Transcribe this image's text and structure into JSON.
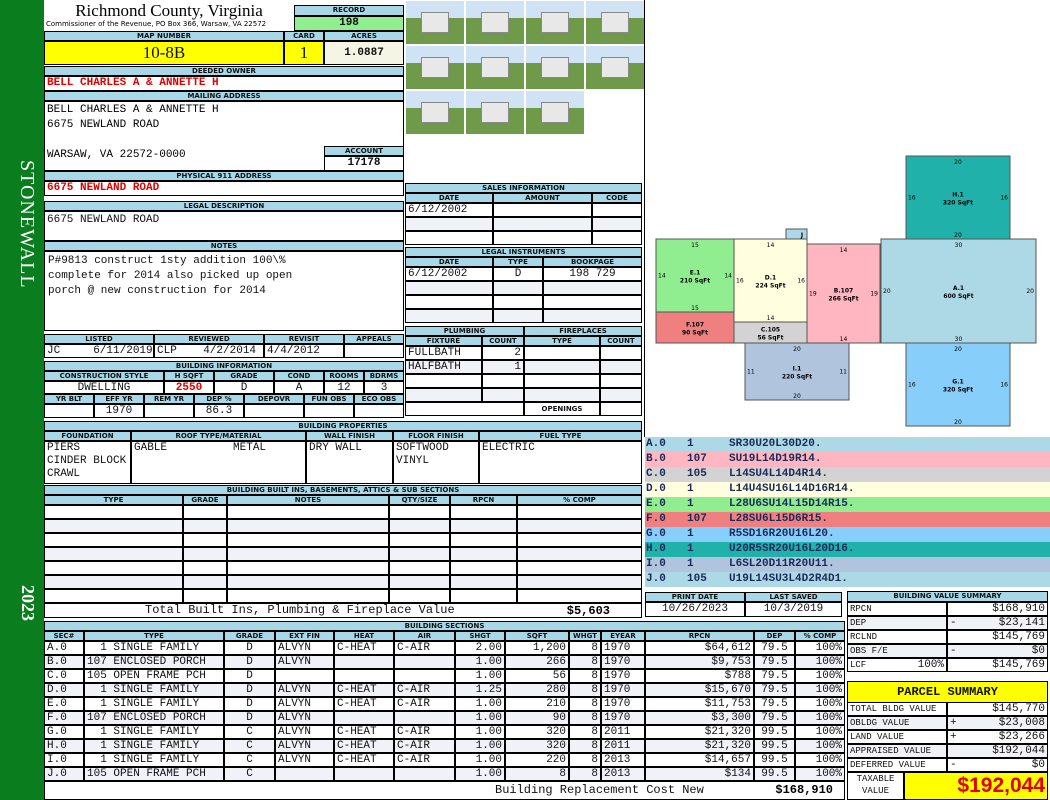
{
  "sidebar": {
    "district": "STONEWALL",
    "year": "2023",
    "color": "#0a7d1e"
  },
  "header": {
    "county": "Richmond County, Virginia",
    "subtitle": "Commissioner of the Revenue, PO Box 366, Warsaw, VA 22572",
    "record_label": "RECORD",
    "record": "198",
    "map_label": "MAP NUMBER",
    "map_number": "10-8B",
    "card_label": "CARD",
    "card": "1",
    "acres_label": "ACRES",
    "acres": "1.0887"
  },
  "owner": {
    "label": "DEEDED OWNER",
    "name": "BELL CHARLES A & ANNETTE H"
  },
  "mailing": {
    "label": "MAILING ADDRESS",
    "line1": "BELL CHARLES A & ANNETTE H",
    "line2": "6675 NEWLAND ROAD",
    "line3": "WARSAW, VA 22572-0000",
    "account_label": "ACCOUNT",
    "account": "17178"
  },
  "physical": {
    "label": "PHYSICAL 911 ADDRESS",
    "address": "6675 NEWLAND ROAD"
  },
  "legal": {
    "label": "LEGAL DESCRIPTION",
    "text": "6675 NEWLAND ROAD"
  },
  "notes": {
    "label": "NOTES",
    "text": "P#9813 construct 1sty addition 100\\% complete for 2014 also picked up open porch @ new construction for 2014"
  },
  "listing": {
    "headers": [
      "LISTED",
      "REVIEWED",
      "REVISIT",
      "APPEALS"
    ],
    "values": [
      "JC     6/11/2019",
      "CLP    4/2/2014",
      "4/4/2012",
      ""
    ]
  },
  "building_info": {
    "label": "BUILDING INFORMATION",
    "headers1": [
      "CONSTRUCTION STYLE",
      "H SQFT",
      "GRADE",
      "COND",
      "ROOMS",
      "BDRMS"
    ],
    "values1": [
      "DWELLING",
      "2550",
      "D",
      "A",
      "12",
      "3"
    ],
    "headers2": [
      "YR BLT",
      "EFF YR",
      "REM YR",
      "DEP %",
      "DEPOVR",
      "FUN OBS",
      "ECO OBS"
    ],
    "values2": [
      "",
      "1970",
      "",
      "86.3",
      "",
      "",
      ""
    ]
  },
  "photos_count": 11,
  "sales": {
    "label": "SALES INFORMATION",
    "headers": [
      "DATE",
      "AMOUNT",
      "CODE"
    ],
    "rows": [
      [
        "6/12/2002",
        "",
        ""
      ],
      [
        "",
        "",
        ""
      ],
      [
        "",
        "",
        ""
      ]
    ]
  },
  "instruments": {
    "label": "LEGAL INSTRUMENTS",
    "headers": [
      "DATE",
      "TYPE",
      "BOOKPAGE"
    ],
    "rows": [
      [
        "6/12/2002",
        "D",
        "198 729"
      ],
      [
        "",
        "",
        ""
      ],
      [
        "",
        "",
        ""
      ],
      [
        "",
        "",
        ""
      ]
    ]
  },
  "plumbing": {
    "label": "PLUMBING",
    "headers": [
      "FIXTURE",
      "COUNT"
    ],
    "rows": [
      [
        "FULLBATH",
        "2"
      ],
      [
        "HALFBATH",
        "1"
      ],
      [
        "",
        ""
      ],
      [
        "",
        ""
      ]
    ]
  },
  "fireplaces": {
    "label": "FIREPLACES",
    "headers": [
      "TYPE",
      "COUNT"
    ],
    "openings_label": "OPENINGS",
    "openings": ""
  },
  "properties": {
    "label": "BUILDING PROPERTIES",
    "headers": [
      "FOUNDATION",
      "ROOF TYPE/MATERIAL",
      "WALL FINISH",
      "FLOOR FINISH",
      "FUEL TYPE"
    ],
    "values": [
      "PIERS\nCINDER BLOCK\nCRAWL",
      "GABLE          METAL",
      "DRY WALL",
      "SOFTWOOD\nVINYL",
      "ELECTRIC"
    ]
  },
  "builtins": {
    "label": "BUILDING BUILT INS, BASEMENTS, ATTICS & SUB SECTIONS",
    "headers": [
      "TYPE",
      "GRADE",
      "NOTES",
      "QTY/SIZE",
      "RPCN",
      "% COMP"
    ],
    "rows": [],
    "total_label": "Total Built Ins, Plumbing & Fireplace Value",
    "total": "$5,603"
  },
  "sections": {
    "label": "BUILDING SECTIONS",
    "headers": [
      "SEC#",
      "TYPE",
      "GRADE",
      "EXT FIN",
      "HEAT",
      "AIR",
      "SHGT",
      "SQFT",
      "WHGT",
      "EYEAR",
      "RPCN",
      "DEP",
      "% COMP"
    ],
    "rows": [
      [
        "A.0",
        "  1 SINGLE FAMILY",
        "D",
        "ALVYN",
        "C-HEAT",
        "C-AIR",
        "2.00",
        "1,200",
        "8",
        "1970",
        "$64,612",
        "79.5",
        "100%"
      ],
      [
        "B.0",
        "107 ENCLOSED PORCH",
        "D",
        "ALVYN",
        "",
        "",
        "1.00",
        "266",
        "8",
        "1970",
        "$9,753",
        "79.5",
        "100%"
      ],
      [
        "C.0",
        "105 OPEN FRAME PCH",
        "D",
        "",
        "",
        "",
        "1.00",
        "56",
        "8",
        "1970",
        "$788",
        "79.5",
        "100%"
      ],
      [
        "D.0",
        "  1 SINGLE FAMILY",
        "D",
        "ALVYN",
        "C-HEAT",
        "C-AIR",
        "1.25",
        "280",
        "8",
        "1970",
        "$15,670",
        "79.5",
        "100%"
      ],
      [
        "E.0",
        "  1 SINGLE FAMILY",
        "D",
        "ALVYN",
        "C-HEAT",
        "C-AIR",
        "1.00",
        "210",
        "8",
        "1970",
        "$11,753",
        "79.5",
        "100%"
      ],
      [
        "F.0",
        "107 ENCLOSED PORCH",
        "D",
        "ALVYN",
        "",
        "",
        "1.00",
        "90",
        "8",
        "1970",
        "$3,300",
        "79.5",
        "100%"
      ],
      [
        "G.0",
        "  1 SINGLE FAMILY",
        "C",
        "ALVYN",
        "C-HEAT",
        "C-AIR",
        "1.00",
        "320",
        "8",
        "2011",
        "$21,320",
        "99.5",
        "100%"
      ],
      [
        "H.0",
        "  1 SINGLE FAMILY",
        "C",
        "ALVYN",
        "C-HEAT",
        "C-AIR",
        "1.00",
        "320",
        "8",
        "2011",
        "$21,320",
        "99.5",
        "100%"
      ],
      [
        "I.0",
        "  1 SINGLE FAMILY",
        "C",
        "ALVYN",
        "C-HEAT",
        "C-AIR",
        "1.00",
        "220",
        "8",
        "2013",
        "$14,657",
        "99.5",
        "100%"
      ],
      [
        "J.0",
        "105 OPEN FRAME PCH",
        "C",
        "",
        "",
        "",
        "1.00",
        "8",
        "8",
        "2013",
        "$134",
        "99.5",
        "100%"
      ]
    ],
    "total_label": "Building Replacement Cost New",
    "total": "$168,910"
  },
  "sketch": {
    "sections": [
      {
        "id": "A",
        "label": "A.1",
        "sqft": "600 SqFt",
        "color": "#add8e6",
        "dims": [
          "30",
          "30",
          "20",
          "20"
        ]
      },
      {
        "id": "B",
        "label": "B.107",
        "sqft": "266 SqFt",
        "color": "#ffb6c1",
        "dims": [
          "14",
          "14",
          "19",
          "19"
        ]
      },
      {
        "id": "C",
        "label": "C.105",
        "sqft": "56 SqFt",
        "color": "#d3d3d3",
        "dims": []
      },
      {
        "id": "D",
        "label": "D.1",
        "sqft": "224 SqFt",
        "color": "#ffffe0",
        "dims": [
          "14",
          "14",
          "16",
          "16"
        ]
      },
      {
        "id": "E",
        "label": "E.1",
        "sqft": "210 SqFt",
        "color": "#90ee90",
        "dims": [
          "15",
          "15",
          "14",
          "14"
        ]
      },
      {
        "id": "F",
        "label": "F.107",
        "sqft": "90 SqFt",
        "color": "#f08080",
        "dims": []
      },
      {
        "id": "G",
        "label": "G.1",
        "sqft": "320 SqFt",
        "color": "#87cefa",
        "dims": [
          "20",
          "20",
          "16",
          "16"
        ]
      },
      {
        "id": "H",
        "label": "H.1",
        "sqft": "320 SqFt",
        "color": "#20b2aa",
        "dims": [
          "20",
          "20",
          "16",
          "16"
        ]
      },
      {
        "id": "I",
        "label": "I.1",
        "sqft": "220 SqFt",
        "color": "#b0c4de",
        "dims": [
          "20",
          "20",
          "11",
          "11"
        ]
      },
      {
        "id": "J",
        "label": "J",
        "sqft": "",
        "color": "#add8e6",
        "dims": []
      }
    ]
  },
  "segments": [
    {
      "sec": "A.0",
      "code": "1",
      "path": "SR30U20L30D20.",
      "color": "#add8e6"
    },
    {
      "sec": "B.0",
      "code": "107",
      "path": "SU19L14D19R14.",
      "color": "#ffb6c1"
    },
    {
      "sec": "C.0",
      "code": "105",
      "path": "L14SU4L14D4R14.",
      "color": "#d3d3d3"
    },
    {
      "sec": "D.0",
      "code": "1",
      "path": "L14U4SU16L14D16R14.",
      "color": "#ffffe0"
    },
    {
      "sec": "E.0",
      "code": "1",
      "path": "L28U6SU14L15D14R15.",
      "color": "#90ee90"
    },
    {
      "sec": "F.0",
      "code": "107",
      "path": "L28SU6L15D6R15.",
      "color": "#f08080"
    },
    {
      "sec": "G.0",
      "code": "1",
      "path": "R5SD16R20U16L20.",
      "color": "#87cefa"
    },
    {
      "sec": "H.0",
      "code": "1",
      "path": "U20R5SR20U16L20D16.",
      "color": "#20b2aa"
    },
    {
      "sec": "I.0",
      "code": "1",
      "path": "L6SL20D11R20U11.",
      "color": "#b0c4de"
    },
    {
      "sec": "J.0",
      "code": "105",
      "path": "U19L14SU3L4D2R4D1.",
      "color": "#add8e6"
    }
  ],
  "dates": {
    "print_label": "PRINT DATE",
    "print": "10/26/2023",
    "saved_label": "LAST SAVED",
    "saved": "10/3/2019"
  },
  "value_summary": {
    "label": "BUILDING VALUE SUMMARY",
    "rows": [
      {
        "label": "RPCN",
        "extra": "",
        "sign": "",
        "value": "$168,910"
      },
      {
        "label": "DEP",
        "extra": "",
        "sign": "-",
        "value": "$23,141"
      },
      {
        "label": "RCLND",
        "extra": "",
        "sign": "",
        "value": "$145,769"
      },
      {
        "label": "OBS F/E",
        "extra": "",
        "sign": "-",
        "value": "$0"
      },
      {
        "label": "LCF",
        "extra": "100%",
        "sign": "",
        "value": "$145,769"
      }
    ]
  },
  "parcel": {
    "label": "PARCEL SUMMARY",
    "rows": [
      {
        "label": "TOTAL BLDG VALUE",
        "sign": "",
        "value": "$145,770"
      },
      {
        "label": "OBLDG VALUE",
        "sign": "+",
        "value": "$23,008"
      },
      {
        "label": "LAND VALUE",
        "sign": "+",
        "value": "$23,266"
      },
      {
        "label": "APPRAISED VALUE",
        "sign": "",
        "value": "$192,044"
      },
      {
        "label": "DEFERRED VALUE",
        "sign": "-",
        "value": "$0"
      }
    ],
    "taxable_label": "TAXABLE VALUE",
    "taxable": "$192,044"
  }
}
